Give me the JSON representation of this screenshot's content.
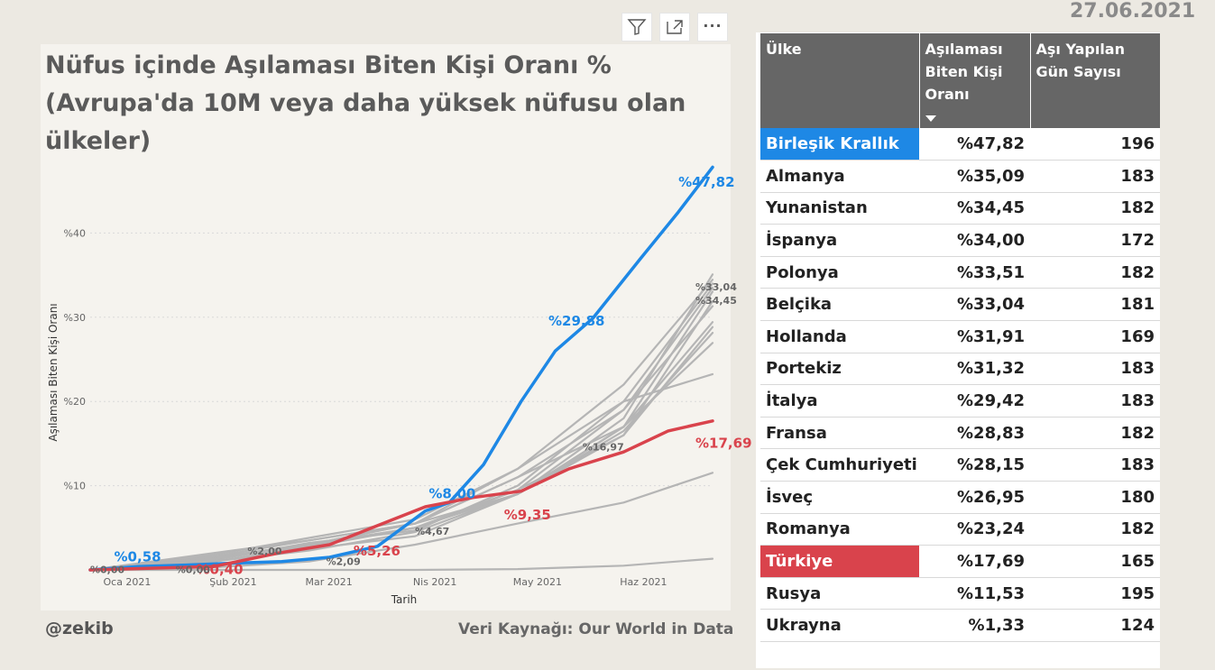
{
  "date": "27.06.2021",
  "toolbar": {
    "icons": [
      "filter-icon",
      "focus-mode-icon",
      "more-options-icon"
    ],
    "more_label": "···"
  },
  "chart_title": "Nüfus içinde Aşılaması Biten Kişi Oranı % (Avrupa'da 10M veya daha yüksek nüfusu olan ülkeler)",
  "footer": {
    "handle": "@zekib",
    "source": "Veri Kaynağı: Our World in Data"
  },
  "colors": {
    "uk": "#1e88e5",
    "turkey": "#d9434c",
    "others": "#b5b5b5",
    "tableHeader": "#666666"
  },
  "chart_data": {
    "type": "line",
    "xlabel": "Tarih",
    "ylabel": "Aşılaması Biten Kişi Oranı",
    "x_ticks": [
      "Oca 2021",
      "Şub 2021",
      "Mar 2021",
      "Nis 2021",
      "May 2021",
      "Haz 2021"
    ],
    "x_range": [
      "2020-12-27",
      "2021-06-27"
    ],
    "y_ticks": [
      "%10",
      "%20",
      "%30",
      "%40"
    ],
    "y_tick_values": [
      10,
      20,
      30,
      40
    ],
    "ylim": [
      0,
      50
    ],
    "grid": true,
    "series": [
      {
        "name": "Birleşik Krallık",
        "color": "#1e88e5",
        "points": [
          [
            "2020-12-27",
            0
          ],
          [
            "2021-01-10",
            0.4
          ],
          [
            "2021-01-24",
            0.58
          ],
          [
            "2021-02-07",
            0.8
          ],
          [
            "2021-02-21",
            1.0
          ],
          [
            "2021-03-07",
            1.5
          ],
          [
            "2021-03-21",
            2.8
          ],
          [
            "2021-04-04",
            7.0
          ],
          [
            "2021-04-11",
            8.0
          ],
          [
            "2021-04-21",
            12.5
          ],
          [
            "2021-05-02",
            20
          ],
          [
            "2021-05-12",
            26
          ],
          [
            "2021-05-23",
            29.88
          ],
          [
            "2021-06-06",
            37
          ],
          [
            "2021-06-17",
            42.5
          ],
          [
            "2021-06-27",
            47.82
          ]
        ]
      },
      {
        "name": "Almanya",
        "color": "#b5b5b5",
        "points": [
          [
            "2020-12-27",
            0
          ],
          [
            "2021-02-01",
            1.5
          ],
          [
            "2021-03-01",
            3.0
          ],
          [
            "2021-04-01",
            5.0
          ],
          [
            "2021-05-01",
            9.0
          ],
          [
            "2021-06-01",
            18.0
          ],
          [
            "2021-06-27",
            35.09
          ]
        ]
      },
      {
        "name": "Yunanistan",
        "color": "#b5b5b5",
        "points": [
          [
            "2020-12-27",
            0
          ],
          [
            "2021-02-01",
            1.6
          ],
          [
            "2021-03-01",
            3.5
          ],
          [
            "2021-04-01",
            5.5
          ],
          [
            "2021-05-01",
            12.0
          ],
          [
            "2021-06-01",
            22.0
          ],
          [
            "2021-06-27",
            34.45
          ]
        ]
      },
      {
        "name": "İspanya",
        "color": "#b5b5b5",
        "points": [
          [
            "2020-12-27",
            0
          ],
          [
            "2021-02-01",
            1.2
          ],
          [
            "2021-03-01",
            3.2
          ],
          [
            "2021-04-01",
            4.67
          ],
          [
            "2021-05-01",
            10.0
          ],
          [
            "2021-06-01",
            20.0
          ],
          [
            "2021-06-27",
            34.0
          ]
        ]
      },
      {
        "name": "Polonya",
        "color": "#b5b5b5",
        "points": [
          [
            "2020-12-27",
            0
          ],
          [
            "2021-02-01",
            1.4
          ],
          [
            "2021-03-01",
            2.8
          ],
          [
            "2021-04-01",
            5.0
          ],
          [
            "2021-05-01",
            9.5
          ],
          [
            "2021-06-01",
            19.0
          ],
          [
            "2021-06-27",
            33.51
          ]
        ]
      },
      {
        "name": "Belçika",
        "color": "#b5b5b5",
        "points": [
          [
            "2020-12-27",
            0
          ],
          [
            "2021-02-01",
            1.0
          ],
          [
            "2021-03-01",
            2.7
          ],
          [
            "2021-04-01",
            5.0
          ],
          [
            "2021-05-01",
            9.0
          ],
          [
            "2021-06-01",
            16.97
          ],
          [
            "2021-06-27",
            33.04
          ]
        ]
      },
      {
        "name": "Hollanda",
        "color": "#b5b5b5",
        "points": [
          [
            "2020-12-27",
            0
          ],
          [
            "2021-02-01",
            1.0
          ],
          [
            "2021-03-01",
            2.5
          ],
          [
            "2021-04-01",
            4.0
          ],
          [
            "2021-05-01",
            9.0
          ],
          [
            "2021-06-01",
            16.0
          ],
          [
            "2021-06-27",
            31.91
          ]
        ]
      },
      {
        "name": "Portekiz",
        "color": "#b5b5b5",
        "points": [
          [
            "2020-12-27",
            0
          ],
          [
            "2021-02-01",
            1.5
          ],
          [
            "2021-03-01",
            3.0
          ],
          [
            "2021-04-01",
            5.5
          ],
          [
            "2021-05-01",
            11.0
          ],
          [
            "2021-06-01",
            19.0
          ],
          [
            "2021-06-27",
            31.32
          ]
        ]
      },
      {
        "name": "İtalya",
        "color": "#b5b5b5",
        "points": [
          [
            "2020-12-27",
            0
          ],
          [
            "2021-02-01",
            2.0
          ],
          [
            "2021-03-01",
            3.5
          ],
          [
            "2021-04-01",
            5.5
          ],
          [
            "2021-05-01",
            11.0
          ],
          [
            "2021-06-01",
            17.0
          ],
          [
            "2021-06-27",
            29.42
          ]
        ]
      },
      {
        "name": "Fransa",
        "color": "#b5b5b5",
        "points": [
          [
            "2020-12-27",
            0
          ],
          [
            "2021-02-01",
            1.2
          ],
          [
            "2021-03-01",
            3.0
          ],
          [
            "2021-04-01",
            5.0
          ],
          [
            "2021-05-01",
            9.5
          ],
          [
            "2021-06-01",
            16.0
          ],
          [
            "2021-06-27",
            28.83
          ]
        ]
      },
      {
        "name": "Çek Cumhuriyeti",
        "color": "#b5b5b5",
        "points": [
          [
            "2020-12-27",
            0
          ],
          [
            "2021-02-01",
            1.0
          ],
          [
            "2021-03-01",
            2.3
          ],
          [
            "2021-04-01",
            4.5
          ],
          [
            "2021-05-01",
            9.0
          ],
          [
            "2021-06-01",
            16.5
          ],
          [
            "2021-06-27",
            28.15
          ]
        ]
      },
      {
        "name": "İsveç",
        "color": "#b5b5b5",
        "points": [
          [
            "2020-12-27",
            0
          ],
          [
            "2021-02-01",
            1.3
          ],
          [
            "2021-03-01",
            3.0
          ],
          [
            "2021-04-01",
            5.5
          ],
          [
            "2021-05-01",
            9.0
          ],
          [
            "2021-06-01",
            17.0
          ],
          [
            "2021-06-27",
            26.95
          ]
        ]
      },
      {
        "name": "Romanya",
        "color": "#b5b5b5",
        "points": [
          [
            "2020-12-27",
            0
          ],
          [
            "2021-02-01",
            1.8
          ],
          [
            "2021-03-01",
            3.8
          ],
          [
            "2021-04-01",
            6.0
          ],
          [
            "2021-05-01",
            12.0
          ],
          [
            "2021-06-01",
            20.0
          ],
          [
            "2021-06-27",
            23.24
          ]
        ]
      },
      {
        "name": "Türkiye",
        "color": "#d9434c",
        "points": [
          [
            "2020-12-27",
            0
          ],
          [
            "2021-02-01",
            0.4
          ],
          [
            "2021-02-20",
            2.0
          ],
          [
            "2021-03-07",
            3.0
          ],
          [
            "2021-03-21",
            5.26
          ],
          [
            "2021-04-04",
            7.5
          ],
          [
            "2021-04-18",
            8.6
          ],
          [
            "2021-05-02",
            9.35
          ],
          [
            "2021-05-16",
            12.0
          ],
          [
            "2021-06-01",
            14.0
          ],
          [
            "2021-06-14",
            16.5
          ],
          [
            "2021-06-27",
            17.69
          ]
        ]
      },
      {
        "name": "Rusya",
        "color": "#b5b5b5",
        "points": [
          [
            "2020-12-27",
            0
          ],
          [
            "2021-02-01",
            0.3
          ],
          [
            "2021-03-01",
            1.0
          ],
          [
            "2021-04-01",
            3.0
          ],
          [
            "2021-05-01",
            5.5
          ],
          [
            "2021-06-01",
            8.0
          ],
          [
            "2021-06-27",
            11.53
          ]
        ]
      },
      {
        "name": "Ukrayna",
        "color": "#b5b5b5",
        "points": [
          [
            "2020-12-27",
            0
          ],
          [
            "2021-04-01",
            0.0
          ],
          [
            "2021-05-01",
            0.1
          ],
          [
            "2021-06-01",
            0.5
          ],
          [
            "2021-06-27",
            1.33
          ]
        ]
      }
    ],
    "annotations": [
      {
        "text": "%47,82",
        "x": "2021-06-17",
        "y": 45.5,
        "color": "#1e88e5",
        "size": "lg"
      },
      {
        "text": "%29,88",
        "x": "2021-05-10",
        "y": 29.0,
        "color": "#1e88e5",
        "size": "lg"
      },
      {
        "text": "%8,00",
        "x": "2021-04-05",
        "y": 8.5,
        "color": "#1e88e5",
        "size": "lg"
      },
      {
        "text": "%0,58",
        "x": "2021-01-03",
        "y": 1.0,
        "color": "#1e88e5",
        "size": "lg"
      },
      {
        "text": "%17,69",
        "x": "2021-06-22",
        "y": 14.5,
        "color": "#d9434c",
        "size": "lg"
      },
      {
        "text": "%9,35",
        "x": "2021-04-27",
        "y": 6.0,
        "color": "#d9434c",
        "size": "lg"
      },
      {
        "text": "%5,26",
        "x": "2021-03-14",
        "y": 1.7,
        "color": "#d9434c",
        "size": "lg"
      },
      {
        "text": "%0,40",
        "x": "2021-01-27",
        "y": -0.5,
        "color": "#d9434c",
        "size": "lg"
      },
      {
        "text": "%33,04",
        "x": "2021-06-22",
        "y": 33.2,
        "color": "#666",
        "size": "sm"
      },
      {
        "text": "%34,45",
        "x": "2021-06-22",
        "y": 31.6,
        "color": "#666",
        "size": "sm"
      },
      {
        "text": "%16,97",
        "x": "2021-05-20",
        "y": 14.2,
        "color": "#666",
        "size": "sm"
      },
      {
        "text": "%4,67",
        "x": "2021-04-01",
        "y": 4.2,
        "color": "#666",
        "size": "sm"
      },
      {
        "text": "%2,00",
        "x": "2021-02-11",
        "y": 1.8,
        "color": "#666",
        "size": "sm"
      },
      {
        "text": "%2,09",
        "x": "2021-03-06",
        "y": 0.6,
        "color": "#666",
        "size": "sm"
      },
      {
        "text": "%0,00",
        "x": "2020-12-27",
        "y": -0.4,
        "color": "#666",
        "size": "sm"
      },
      {
        "text": "%0,00",
        "x": "2021-01-21",
        "y": -0.4,
        "color": "#666",
        "size": "sm"
      }
    ]
  },
  "table": {
    "headers": [
      "Ülke",
      "Aşılaması Biten Kişi Oranı",
      "Aşı Yapılan Gün Sayısı"
    ],
    "rows": [
      {
        "country": "Birleşik Krallık",
        "rate": "%47,82",
        "days": "196",
        "highlight": "#1e88e5"
      },
      {
        "country": "Almanya",
        "rate": "%35,09",
        "days": "183"
      },
      {
        "country": "Yunanistan",
        "rate": "%34,45",
        "days": "182"
      },
      {
        "country": "İspanya",
        "rate": "%34,00",
        "days": "172"
      },
      {
        "country": "Polonya",
        "rate": "%33,51",
        "days": "182"
      },
      {
        "country": "Belçika",
        "rate": "%33,04",
        "days": "181"
      },
      {
        "country": "Hollanda",
        "rate": "%31,91",
        "days": "169"
      },
      {
        "country": "Portekiz",
        "rate": "%31,32",
        "days": "183"
      },
      {
        "country": "İtalya",
        "rate": "%29,42",
        "days": "183"
      },
      {
        "country": "Fransa",
        "rate": "%28,83",
        "days": "182"
      },
      {
        "country": "Çek Cumhuriyeti",
        "rate": "%28,15",
        "days": "183"
      },
      {
        "country": "İsveç",
        "rate": "%26,95",
        "days": "180"
      },
      {
        "country": "Romanya",
        "rate": "%23,24",
        "days": "182"
      },
      {
        "country": "Türkiye",
        "rate": "%17,69",
        "days": "165",
        "highlight": "#d9434c"
      },
      {
        "country": "Rusya",
        "rate": "%11,53",
        "days": "195"
      },
      {
        "country": "Ukrayna",
        "rate": "%1,33",
        "days": "124"
      }
    ]
  }
}
